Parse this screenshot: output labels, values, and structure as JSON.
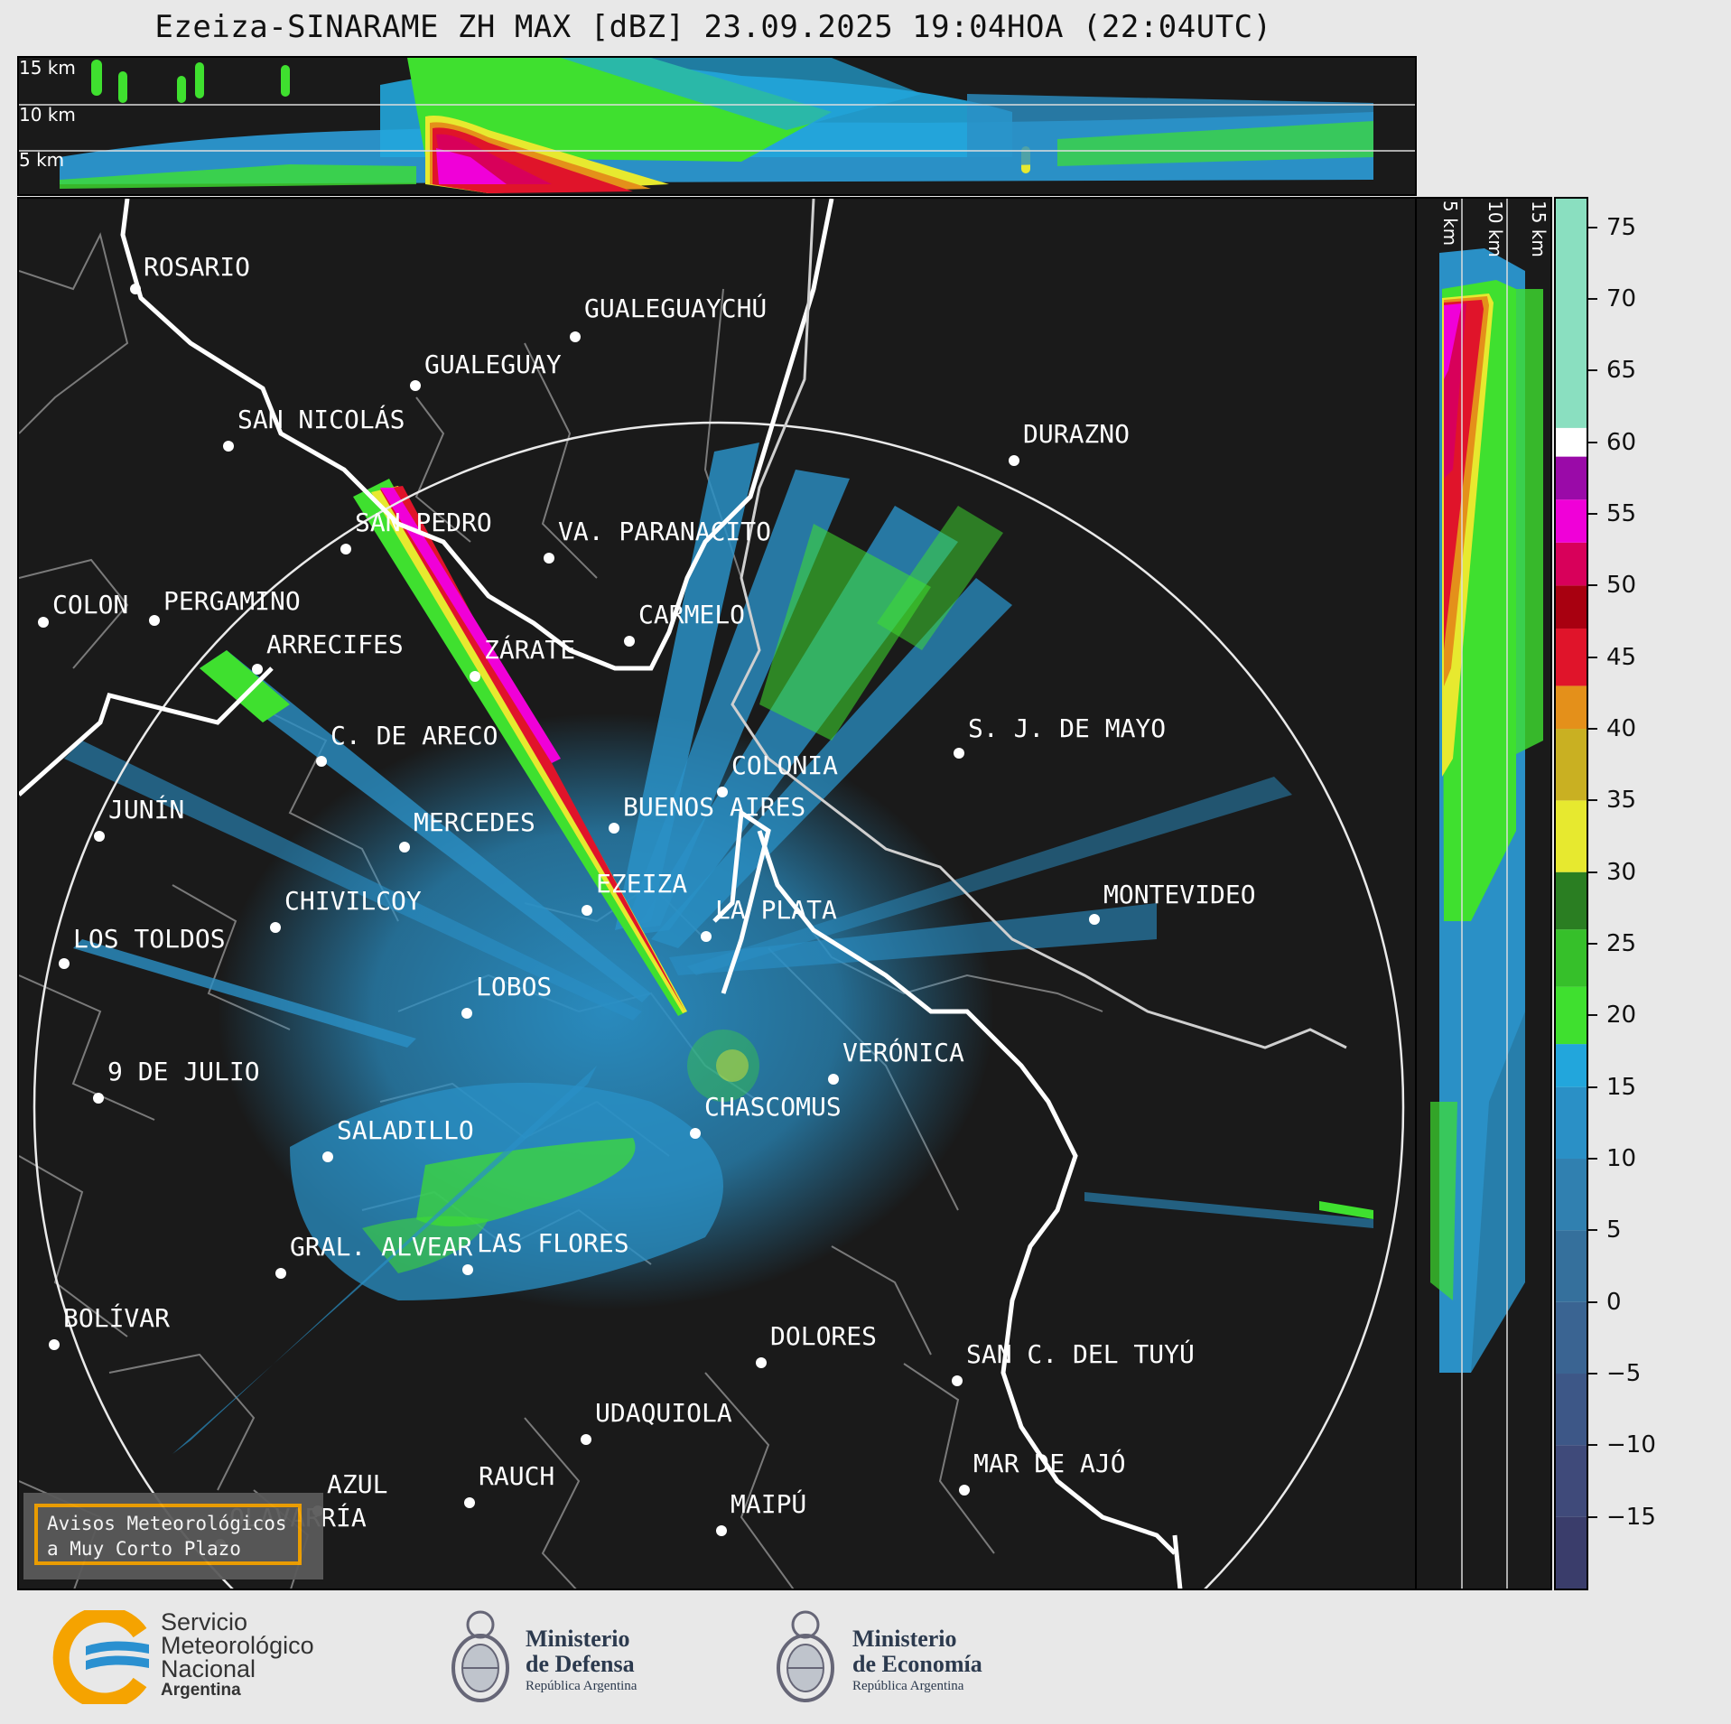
{
  "title": "Ezeiza-SINARAME ZH MAX [dBZ] 23.09.2025 19:04HOA (22:04UTC)",
  "top_panel": {
    "height_labels": [
      "15 km",
      "10 km",
      "5 km"
    ]
  },
  "side_panel": {
    "height_labels": [
      "5 km",
      "10 km",
      "15 km"
    ]
  },
  "colorbar": {
    "ticks": [
      "75",
      "70",
      "65",
      "60",
      "55",
      "50",
      "45",
      "40",
      "35",
      "30",
      "25",
      "20",
      "15",
      "10",
      "5",
      "0",
      "−5",
      "−10",
      "−15"
    ],
    "range_dbz": [
      -20,
      77
    ],
    "bands": [
      {
        "from": -20,
        "to": -15,
        "color": "#3a3d6b"
      },
      {
        "from": -15,
        "to": -10,
        "color": "#3f4a7a"
      },
      {
        "from": -10,
        "to": -5,
        "color": "#3d5787"
      },
      {
        "from": -5,
        "to": 0,
        "color": "#3a6492"
      },
      {
        "from": 0,
        "to": 5,
        "color": "#35709c"
      },
      {
        "from": 5,
        "to": 10,
        "color": "#3080b0"
      },
      {
        "from": 10,
        "to": 15,
        "color": "#2a90c6"
      },
      {
        "from": 15,
        "to": 18,
        "color": "#22a6dc"
      },
      {
        "from": 18,
        "to": 22,
        "color": "#3fe02f"
      },
      {
        "from": 22,
        "to": 26,
        "color": "#36c02a"
      },
      {
        "from": 26,
        "to": 30,
        "color": "#2a7e22"
      },
      {
        "from": 30,
        "to": 35,
        "color": "#e7e92f"
      },
      {
        "from": 35,
        "to": 40,
        "color": "#c9b022"
      },
      {
        "from": 40,
        "to": 43,
        "color": "#e4901a"
      },
      {
        "from": 43,
        "to": 47,
        "color": "#e0142a"
      },
      {
        "from": 47,
        "to": 50,
        "color": "#a80010"
      },
      {
        "from": 50,
        "to": 53,
        "color": "#d8005a"
      },
      {
        "from": 53,
        "to": 56,
        "color": "#f000d8"
      },
      {
        "from": 56,
        "to": 59,
        "color": "#9a0aa8"
      },
      {
        "from": 59,
        "to": 61,
        "color": "#ffffff"
      },
      {
        "from": 61,
        "to": 77,
        "color": "#8adfc0"
      }
    ]
  },
  "cities": [
    {
      "name": "ROSARIO"
    },
    {
      "name": "GUALEGUAYCHÚ"
    },
    {
      "name": "GUALEGUAY"
    },
    {
      "name": "SAN NICOLÁS"
    },
    {
      "name": "DURAZNO"
    },
    {
      "name": "SAN PEDRO"
    },
    {
      "name": "VA. PARANACITO"
    },
    {
      "name": "COLON"
    },
    {
      "name": "PERGAMINO"
    },
    {
      "name": "CARMELO"
    },
    {
      "name": "ARRECIFES"
    },
    {
      "name": "ZÁRATE"
    },
    {
      "name": "S. J. DE MAYO"
    },
    {
      "name": "C. DE ARECO"
    },
    {
      "name": "COLONIA"
    },
    {
      "name": "JUNÍN"
    },
    {
      "name": "BUENOS AIRES"
    },
    {
      "name": "MERCEDES"
    },
    {
      "name": "EZEIZA"
    },
    {
      "name": "MONTEVIDEO"
    },
    {
      "name": "CHIVILCOY"
    },
    {
      "name": "LA PLATA"
    },
    {
      "name": "LOS TOLDOS"
    },
    {
      "name": "LOBOS"
    },
    {
      "name": "VERÓNICA"
    },
    {
      "name": "9 DE JULIO"
    },
    {
      "name": "CHASCOMUS"
    },
    {
      "name": "SALADILLO"
    },
    {
      "name": "GRAL. ALVEAR"
    },
    {
      "name": "LAS FLORES"
    },
    {
      "name": "BOLÍVAR"
    },
    {
      "name": "DOLORES"
    },
    {
      "name": "SAN C. DEL TUYÚ"
    },
    {
      "name": "UDAQUIOLA"
    },
    {
      "name": "MAR DE AJÓ"
    },
    {
      "name": "AZUL"
    },
    {
      "name": "RAUCH"
    },
    {
      "name": "MAIPÚ"
    },
    {
      "name": "OLAVARRÍA"
    }
  ],
  "warning_box": {
    "line1": "Avisos Meteorológicos",
    "line2": "a Muy Corto Plazo"
  },
  "footer": {
    "smn": {
      "line1": "Servicio",
      "line2": "Meteorológico",
      "line3": "Nacional",
      "line4": "Argentina"
    },
    "defensa": {
      "line1": "Ministerio",
      "line2": "de Defensa",
      "line3": "República Argentina"
    },
    "economia": {
      "line1": "Ministerio",
      "line2": "de Economía",
      "line3": "República Argentina"
    }
  }
}
